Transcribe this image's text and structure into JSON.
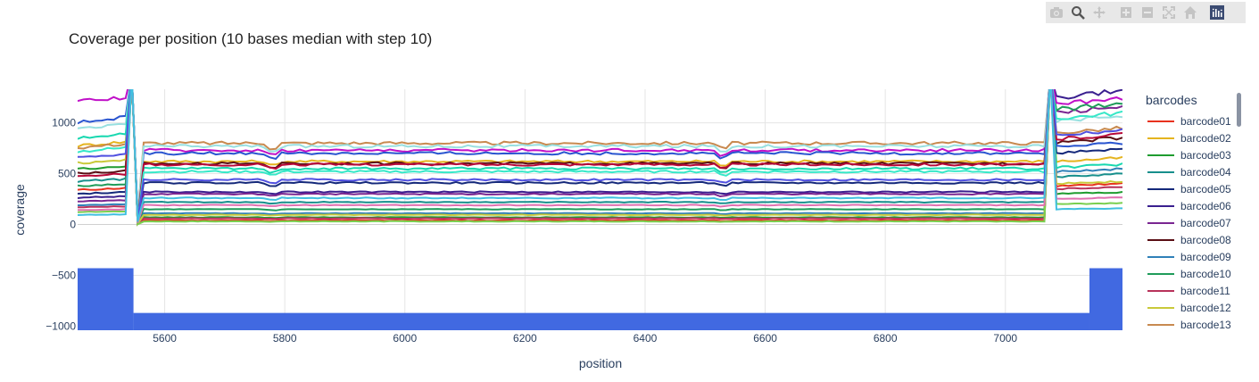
{
  "title": "Coverage per position (10 bases median with step 10)",
  "modebar": {
    "buttons": [
      {
        "name": "camera-icon",
        "group": 0
      },
      {
        "name": "zoom-icon",
        "group": 0
      },
      {
        "name": "pan-icon",
        "group": 0
      },
      {
        "name": "zoom-in-icon",
        "group": 1
      },
      {
        "name": "zoom-out-icon",
        "group": 1
      },
      {
        "name": "autoscale-icon",
        "group": 1
      },
      {
        "name": "reset-axes-icon",
        "group": 1
      },
      {
        "name": "plotly-logo-icon",
        "group": 2
      }
    ]
  },
  "legend": {
    "title": "barcodes",
    "items": [
      {
        "label": "barcode01",
        "color": "#e8321e"
      },
      {
        "label": "barcode02",
        "color": "#e5b41f"
      },
      {
        "label": "barcode03",
        "color": "#1f9c2f"
      },
      {
        "label": "barcode04",
        "color": "#178f8c"
      },
      {
        "label": "barcode05",
        "color": "#14287a"
      },
      {
        "label": "barcode06",
        "color": "#3a1f8f"
      },
      {
        "label": "barcode07",
        "color": "#7a2591"
      },
      {
        "label": "barcode08",
        "color": "#5a0e14"
      },
      {
        "label": "barcode09",
        "color": "#2f80b8"
      },
      {
        "label": "barcode10",
        "color": "#1f9c5a"
      },
      {
        "label": "barcode11",
        "color": "#b8325a"
      },
      {
        "label": "barcode12",
        "color": "#c9c93a"
      },
      {
        "label": "barcode13",
        "color": "#c88a50"
      }
    ]
  },
  "chart_data": {
    "type": "line",
    "title": "Coverage per position (10 bases median with step 10)",
    "xlabel": "position",
    "ylabel": "coverage",
    "xlim": [
      5455,
      7195
    ],
    "ylim": [
      -1040,
      1330
    ],
    "xticks": [
      5600,
      5800,
      6000,
      6200,
      6400,
      6600,
      6800,
      7000
    ],
    "yticks": [
      {
        "value": 1000,
        "label": "1000"
      },
      {
        "value": 500,
        "label": "500"
      },
      {
        "value": 0,
        "label": "0"
      },
      {
        "value": -500,
        "label": "−500"
      },
      {
        "value": -1000,
        "label": "−1000"
      }
    ],
    "grid": true,
    "legend_placement": "right",
    "amplicon_start": 5548,
    "amplicon_end": 7085,
    "series": [
      {
        "name": "barcode01",
        "color": "#e8321e",
        "flank_left": 360,
        "mid": 40,
        "flank_right": 380
      },
      {
        "name": "barcode02",
        "color": "#e5b41f",
        "flank_left": 820,
        "mid": 620,
        "flank_right": 620
      },
      {
        "name": "barcode03",
        "color": "#1f9c2f",
        "flank_left": 580,
        "mid": 70,
        "flank_right": 300
      },
      {
        "name": "barcode04",
        "color": "#178f8c",
        "flank_left": 450,
        "mid": 220,
        "flank_right": 470
      },
      {
        "name": "barcode05",
        "color": "#14287a",
        "flank_left": 320,
        "mid": 410,
        "flank_right": 700
      },
      {
        "name": "barcode06",
        "color": "#3a1f8f",
        "flank_left": 280,
        "mid": 320,
        "flank_right": 1250
      },
      {
        "name": "barcode07",
        "color": "#7a2591",
        "flank_left": 240,
        "mid": 300,
        "flank_right": 1100
      },
      {
        "name": "barcode08",
        "color": "#5a0e14",
        "flank_left": 530,
        "mid": 600,
        "flank_right": 810
      },
      {
        "name": "barcode09",
        "color": "#2f80b8",
        "flank_left": 200,
        "mid": 110,
        "flank_right": 520
      },
      {
        "name": "barcode10",
        "color": "#1f9c5a",
        "flank_left": 400,
        "mid": 150,
        "flank_right": 1130
      },
      {
        "name": "barcode11",
        "color": "#b8325a",
        "flank_left": 180,
        "mid": 60,
        "flank_right": 350
      },
      {
        "name": "barcode12",
        "color": "#c9c93a",
        "flank_left": 640,
        "mid": 95,
        "flank_right": 400
      },
      {
        "name": "barcode13",
        "color": "#c88a50",
        "flank_left": 800,
        "mid": 800,
        "flank_right": 900
      },
      {
        "name": "",
        "color": "#c010c8",
        "flank_left": 1270,
        "mid": 730,
        "flank_right": 1180
      },
      {
        "name": "",
        "color": "#2a55d0",
        "flank_left": 1060,
        "mid": 700,
        "flank_right": 760
      },
      {
        "name": "",
        "color": "#98e0e0",
        "flank_left": 990,
        "mid": 770,
        "flank_right": 1020
      },
      {
        "name": "",
        "color": "#18d8b0",
        "flank_left": 900,
        "mid": 550,
        "flank_right": 560
      },
      {
        "name": "",
        "color": "#b80838",
        "flank_left": 500,
        "mid": 590,
        "flank_right": 840
      },
      {
        "name": "",
        "color": "#36e8c8",
        "flank_left": 760,
        "mid": 520,
        "flank_right": 1040
      },
      {
        "name": "",
        "color": "#5050e0",
        "flank_left": 700,
        "mid": 440,
        "flank_right": 880
      },
      {
        "name": "",
        "color": "#7ad050",
        "flank_left": 130,
        "mid": 30,
        "flank_right": 200
      },
      {
        "name": "",
        "color": "#e070b0",
        "flank_left": 150,
        "mid": 190,
        "flank_right": 250
      },
      {
        "name": "",
        "color": "#40c0e0",
        "flank_left": 100,
        "mid": 260,
        "flank_right": 150
      }
    ],
    "bottom_bar": {
      "color": "#4169e1",
      "flank_top": -430,
      "mid_top": -870,
      "base": -1040
    }
  }
}
